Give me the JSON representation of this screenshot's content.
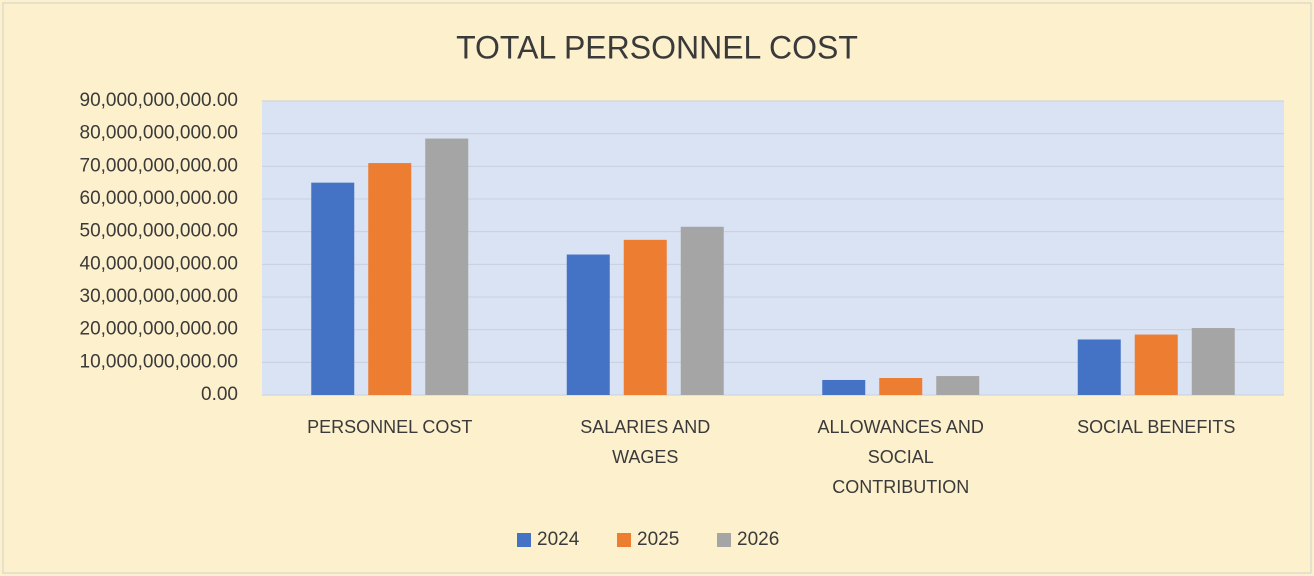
{
  "chart_data": {
    "type": "bar",
    "title": "TOTAL PERSONNEL COST",
    "categories": [
      "PERSONNEL COST",
      "SALARIES AND WAGES",
      "ALLOWANCES AND SOCIAL CONTRIBUTION",
      "SOCIAL BENEFITS"
    ],
    "series": [
      {
        "name": "2024",
        "color": "#4472c4",
        "values": [
          65000000000,
          43000000000,
          4600000000,
          17000000000
        ]
      },
      {
        "name": "2025",
        "color": "#ed7d31",
        "values": [
          71000000000,
          47500000000,
          5200000000,
          18500000000
        ]
      },
      {
        "name": "2026",
        "color": "#a5a5a5",
        "values": [
          78500000000,
          51500000000,
          5800000000,
          20500000000
        ]
      }
    ],
    "ylim": [
      0,
      90000000000
    ],
    "yticks": [
      {
        "value": 0,
        "label": "0.00"
      },
      {
        "value": 10000000000,
        "label": "10,000,000,000.00"
      },
      {
        "value": 20000000000,
        "label": "20,000,000,000.00"
      },
      {
        "value": 30000000000,
        "label": "30,000,000,000.00"
      },
      {
        "value": 40000000000,
        "label": "40,000,000,000.00"
      },
      {
        "value": 50000000000,
        "label": "50,000,000,000.00"
      },
      {
        "value": 60000000000,
        "label": "60,000,000,000.00"
      },
      {
        "value": 70000000000,
        "label": "70,000,000,000.00"
      },
      {
        "value": 80000000000,
        "label": "80,000,000,000.00"
      },
      {
        "value": 90000000000,
        "label": "90,000,000,000.00"
      }
    ],
    "grid": true,
    "legend": "bottom"
  }
}
